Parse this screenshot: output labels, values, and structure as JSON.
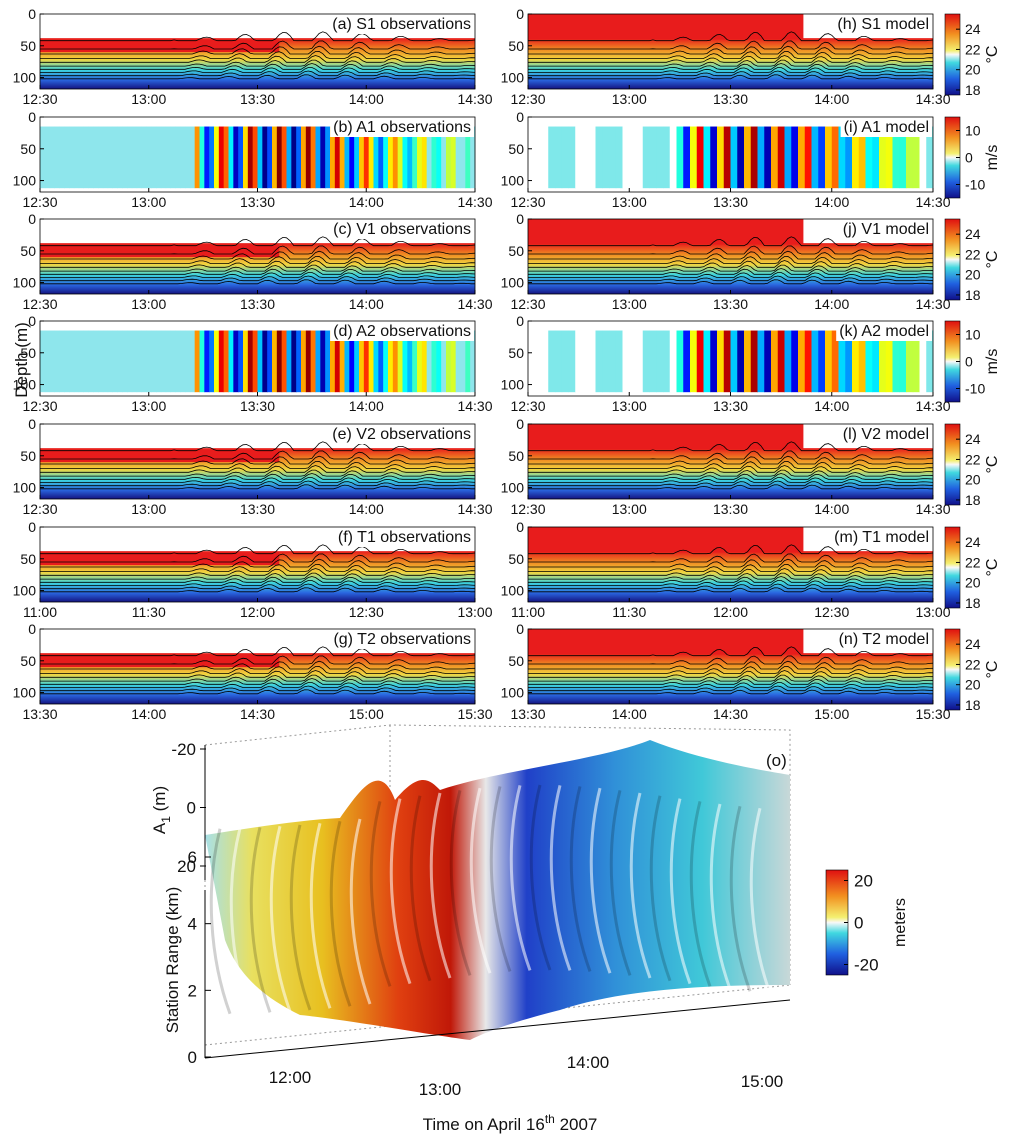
{
  "chart_data": [
    {
      "type": "contour",
      "title": "(a) S1 observations",
      "ylim": [
        0,
        118
      ],
      "yticks": [
        0,
        50,
        100
      ],
      "xticks": [
        "12:30",
        "13:00",
        "13:30",
        "14:00",
        "14:30"
      ]
    },
    {
      "type": "heatmap",
      "title": "(b) A1 observations",
      "ylim": [
        0,
        118
      ],
      "yticks": [
        0,
        50,
        100
      ],
      "xticks": [
        "12:30",
        "13:00",
        "13:30",
        "14:00",
        "14:30"
      ]
    },
    {
      "type": "contour",
      "title": "(c) V1 observations",
      "ylim": [
        0,
        118
      ],
      "yticks": [
        0,
        50,
        100
      ],
      "xticks": [
        "12:30",
        "13:00",
        "13:30",
        "14:00",
        "14:30"
      ]
    },
    {
      "type": "heatmap",
      "title": "(d) A2 observations",
      "ylim": [
        0,
        118
      ],
      "yticks": [
        0,
        50,
        100
      ],
      "xticks": [
        "12:30",
        "13:00",
        "13:30",
        "14:00",
        "14:30"
      ]
    },
    {
      "type": "contour",
      "title": "(e) V2 observations",
      "ylim": [
        0,
        118
      ],
      "yticks": [
        0,
        50,
        100
      ],
      "xticks": [
        "12:30",
        "13:00",
        "13:30",
        "14:00",
        "14:30"
      ]
    },
    {
      "type": "contour",
      "title": "(f) T1 observations",
      "ylim": [
        0,
        118
      ],
      "yticks": [
        0,
        50,
        100
      ],
      "xticks": [
        "11:00",
        "11:30",
        "12:00",
        "12:30",
        "13:00"
      ]
    },
    {
      "type": "contour",
      "title": "(g) T2 observations",
      "ylim": [
        0,
        118
      ],
      "yticks": [
        0,
        50,
        100
      ],
      "xticks": [
        "13:30",
        "14:00",
        "14:30",
        "15:00",
        "15:30"
      ]
    },
    {
      "type": "contour",
      "title": "(h) S1 model",
      "ylim": [
        0,
        118
      ],
      "yticks": [
        0,
        50,
        100
      ],
      "xticks": [
        "12:30",
        "13:00",
        "13:30",
        "14:00",
        "14:30"
      ],
      "colorbar": {
        "lim": [
          17.5,
          25.5
        ],
        "ticks": [
          24,
          22,
          20,
          18
        ],
        "unit": "°C"
      }
    },
    {
      "type": "heatmap",
      "title": "(i) A1 model",
      "ylim": [
        0,
        118
      ],
      "yticks": [
        0,
        50,
        100
      ],
      "xticks": [
        "12:30",
        "13:00",
        "13:30",
        "14:00",
        "14:30"
      ],
      "colorbar": {
        "lim": [
          -15,
          15
        ],
        "ticks": [
          10,
          0,
          -10
        ],
        "unit": "m/s"
      }
    },
    {
      "type": "contour",
      "title": "(j) V1 model",
      "ylim": [
        0,
        118
      ],
      "yticks": [
        0,
        50,
        100
      ],
      "xticks": [
        "12:30",
        "13:00",
        "13:30",
        "14:00",
        "14:30"
      ],
      "colorbar": {
        "lim": [
          17.5,
          25.5
        ],
        "ticks": [
          24,
          22,
          20,
          18
        ],
        "unit": "°C"
      }
    },
    {
      "type": "heatmap",
      "title": "(k) A2 model",
      "ylim": [
        0,
        118
      ],
      "yticks": [
        0,
        50,
        100
      ],
      "xticks": [
        "12:30",
        "13:00",
        "13:30",
        "14:00",
        "14:30"
      ],
      "colorbar": {
        "lim": [
          -15,
          15
        ],
        "ticks": [
          10,
          0,
          -10
        ],
        "unit": "m/s"
      }
    },
    {
      "type": "contour",
      "title": "(l) V2 model",
      "ylim": [
        0,
        118
      ],
      "yticks": [
        0,
        50,
        100
      ],
      "xticks": [
        "12:30",
        "13:00",
        "13:30",
        "14:00",
        "14:30"
      ],
      "colorbar": {
        "lim": [
          17.5,
          25.5
        ],
        "ticks": [
          24,
          22,
          20,
          18
        ],
        "unit": "°C"
      }
    },
    {
      "type": "contour",
      "title": "(m) T1 model",
      "ylim": [
        0,
        118
      ],
      "yticks": [
        0,
        50,
        100
      ],
      "xticks": [
        "11:00",
        "11:30",
        "12:00",
        "12:30",
        "13:00"
      ],
      "colorbar": {
        "lim": [
          17.5,
          25.5
        ],
        "ticks": [
          24,
          22,
          20,
          18
        ],
        "unit": "°C"
      }
    },
    {
      "type": "contour",
      "title": "(n) T2 model",
      "ylim": [
        0,
        118
      ],
      "yticks": [
        0,
        50,
        100
      ],
      "xticks": [
        "13:30",
        "14:00",
        "14:30",
        "15:00",
        "15:30"
      ],
      "colorbar": {
        "lim": [
          17.5,
          25.5
        ],
        "ticks": [
          24,
          22,
          20,
          18
        ],
        "unit": "°C"
      }
    },
    {
      "type": "surface3d",
      "title": "(o)",
      "y_label_left": "Depth (m)",
      "zlabel": {
        "text": "A",
        "sub": "1",
        "rest": " (m)"
      },
      "zlim": [
        -20,
        20
      ],
      "zticks": [
        -20,
        0,
        20
      ],
      "ylabel": "Station Range (km)",
      "ylim": [
        0,
        6
      ],
      "yticks": [
        0,
        2,
        4,
        6
      ],
      "xlabel": {
        "text": "Time on April 16",
        "sup": "th",
        "rest": " 2007"
      },
      "xticks": [
        "12:00",
        "13:00",
        "14:00",
        "15:00"
      ],
      "colorbar": {
        "lim": [
          -25,
          25
        ],
        "ticks": [
          20,
          0,
          -20
        ],
        "unit": "meters"
      }
    }
  ]
}
